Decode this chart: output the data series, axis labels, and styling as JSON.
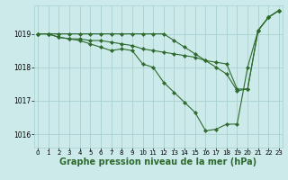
{
  "background_color": "#cdeaea",
  "grid_color": "#a8d0d0",
  "line_color": "#2d6a2d",
  "marker_color": "#2d6a2d",
  "xlabel": "Graphe pression niveau de la mer (hPa)",
  "xlabel_fontsize": 7.0,
  "ylim": [
    1015.6,
    1019.85
  ],
  "xlim": [
    -0.3,
    23.3
  ],
  "yticks": [
    1016,
    1017,
    1018,
    1019
  ],
  "xticks": [
    0,
    1,
    2,
    3,
    4,
    5,
    6,
    7,
    8,
    9,
    10,
    11,
    12,
    13,
    14,
    15,
    16,
    17,
    18,
    19,
    20,
    21,
    22,
    23
  ],
  "series": [
    [
      1019.0,
      1019.0,
      1018.9,
      1018.85,
      1018.85,
      1018.8,
      1018.8,
      1018.75,
      1018.7,
      1018.65,
      1018.55,
      1018.5,
      1018.45,
      1018.4,
      1018.35,
      1018.3,
      1018.2,
      1018.15,
      1018.1,
      1017.35,
      1017.35,
      1019.1,
      1019.5,
      1019.7
    ],
    [
      1019.0,
      1019.0,
      1018.9,
      1018.85,
      1018.8,
      1018.7,
      1018.6,
      1018.5,
      1018.55,
      1018.5,
      1018.1,
      1018.0,
      1017.55,
      1017.25,
      1016.95,
      1016.65,
      1016.1,
      1016.15,
      1016.3,
      1016.3,
      1018.0,
      1019.1,
      1019.5,
      1019.7
    ],
    [
      1019.0,
      1019.0,
      1019.0,
      1019.0,
      1019.0,
      1019.0,
      1019.0,
      1019.0,
      1019.0,
      1019.0,
      1019.0,
      1019.0,
      1019.0,
      1018.8,
      1018.6,
      1018.4,
      1018.2,
      1018.0,
      1017.8,
      1017.3,
      1017.35,
      1019.1,
      1019.5,
      1019.7
    ]
  ]
}
